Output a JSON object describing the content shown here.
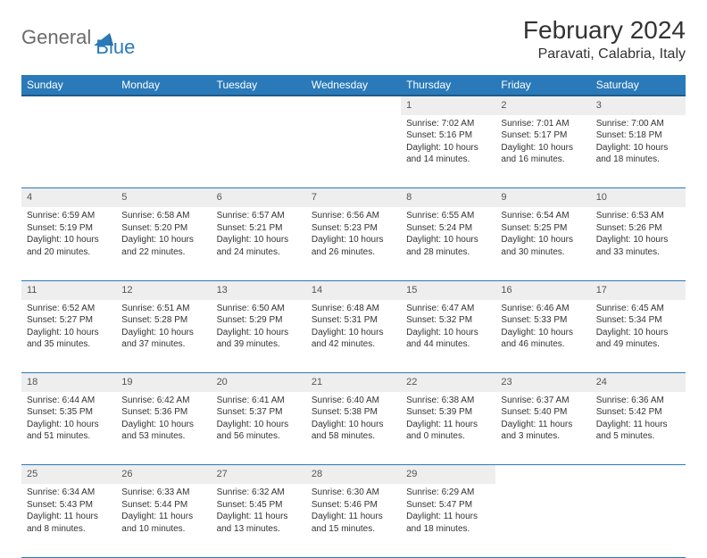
{
  "logo": {
    "word1": "General",
    "word2": "Blue"
  },
  "brand_colors": {
    "logo_gray": "#6b6b6b",
    "logo_blue": "#2a7ab9",
    "header_bg": "#2a7ab9",
    "header_border": "#1e5a8a",
    "row_border": "#2a7ab9",
    "daynum_bg": "#eeeeee",
    "text": "#333333"
  },
  "typography": {
    "title_fontsize": 28,
    "location_fontsize": 16,
    "header_fontsize": 12,
    "body_fontsize": 10
  },
  "title": "February 2024",
  "location": "Paravati, Calabria, Italy",
  "day_headers": [
    "Sunday",
    "Monday",
    "Tuesday",
    "Wednesday",
    "Thursday",
    "Friday",
    "Saturday"
  ],
  "weeks": [
    [
      null,
      null,
      null,
      null,
      {
        "n": "1",
        "sunrise": "Sunrise: 7:02 AM",
        "sunset": "Sunset: 5:16 PM",
        "daylight": "Daylight: 10 hours and 14 minutes."
      },
      {
        "n": "2",
        "sunrise": "Sunrise: 7:01 AM",
        "sunset": "Sunset: 5:17 PM",
        "daylight": "Daylight: 10 hours and 16 minutes."
      },
      {
        "n": "3",
        "sunrise": "Sunrise: 7:00 AM",
        "sunset": "Sunset: 5:18 PM",
        "daylight": "Daylight: 10 hours and 18 minutes."
      }
    ],
    [
      {
        "n": "4",
        "sunrise": "Sunrise: 6:59 AM",
        "sunset": "Sunset: 5:19 PM",
        "daylight": "Daylight: 10 hours and 20 minutes."
      },
      {
        "n": "5",
        "sunrise": "Sunrise: 6:58 AM",
        "sunset": "Sunset: 5:20 PM",
        "daylight": "Daylight: 10 hours and 22 minutes."
      },
      {
        "n": "6",
        "sunrise": "Sunrise: 6:57 AM",
        "sunset": "Sunset: 5:21 PM",
        "daylight": "Daylight: 10 hours and 24 minutes."
      },
      {
        "n": "7",
        "sunrise": "Sunrise: 6:56 AM",
        "sunset": "Sunset: 5:23 PM",
        "daylight": "Daylight: 10 hours and 26 minutes."
      },
      {
        "n": "8",
        "sunrise": "Sunrise: 6:55 AM",
        "sunset": "Sunset: 5:24 PM",
        "daylight": "Daylight: 10 hours and 28 minutes."
      },
      {
        "n": "9",
        "sunrise": "Sunrise: 6:54 AM",
        "sunset": "Sunset: 5:25 PM",
        "daylight": "Daylight: 10 hours and 30 minutes."
      },
      {
        "n": "10",
        "sunrise": "Sunrise: 6:53 AM",
        "sunset": "Sunset: 5:26 PM",
        "daylight": "Daylight: 10 hours and 33 minutes."
      }
    ],
    [
      {
        "n": "11",
        "sunrise": "Sunrise: 6:52 AM",
        "sunset": "Sunset: 5:27 PM",
        "daylight": "Daylight: 10 hours and 35 minutes."
      },
      {
        "n": "12",
        "sunrise": "Sunrise: 6:51 AM",
        "sunset": "Sunset: 5:28 PM",
        "daylight": "Daylight: 10 hours and 37 minutes."
      },
      {
        "n": "13",
        "sunrise": "Sunrise: 6:50 AM",
        "sunset": "Sunset: 5:29 PM",
        "daylight": "Daylight: 10 hours and 39 minutes."
      },
      {
        "n": "14",
        "sunrise": "Sunrise: 6:48 AM",
        "sunset": "Sunset: 5:31 PM",
        "daylight": "Daylight: 10 hours and 42 minutes."
      },
      {
        "n": "15",
        "sunrise": "Sunrise: 6:47 AM",
        "sunset": "Sunset: 5:32 PM",
        "daylight": "Daylight: 10 hours and 44 minutes."
      },
      {
        "n": "16",
        "sunrise": "Sunrise: 6:46 AM",
        "sunset": "Sunset: 5:33 PM",
        "daylight": "Daylight: 10 hours and 46 minutes."
      },
      {
        "n": "17",
        "sunrise": "Sunrise: 6:45 AM",
        "sunset": "Sunset: 5:34 PM",
        "daylight": "Daylight: 10 hours and 49 minutes."
      }
    ],
    [
      {
        "n": "18",
        "sunrise": "Sunrise: 6:44 AM",
        "sunset": "Sunset: 5:35 PM",
        "daylight": "Daylight: 10 hours and 51 minutes."
      },
      {
        "n": "19",
        "sunrise": "Sunrise: 6:42 AM",
        "sunset": "Sunset: 5:36 PM",
        "daylight": "Daylight: 10 hours and 53 minutes."
      },
      {
        "n": "20",
        "sunrise": "Sunrise: 6:41 AM",
        "sunset": "Sunset: 5:37 PM",
        "daylight": "Daylight: 10 hours and 56 minutes."
      },
      {
        "n": "21",
        "sunrise": "Sunrise: 6:40 AM",
        "sunset": "Sunset: 5:38 PM",
        "daylight": "Daylight: 10 hours and 58 minutes."
      },
      {
        "n": "22",
        "sunrise": "Sunrise: 6:38 AM",
        "sunset": "Sunset: 5:39 PM",
        "daylight": "Daylight: 11 hours and 0 minutes."
      },
      {
        "n": "23",
        "sunrise": "Sunrise: 6:37 AM",
        "sunset": "Sunset: 5:40 PM",
        "daylight": "Daylight: 11 hours and 3 minutes."
      },
      {
        "n": "24",
        "sunrise": "Sunrise: 6:36 AM",
        "sunset": "Sunset: 5:42 PM",
        "daylight": "Daylight: 11 hours and 5 minutes."
      }
    ],
    [
      {
        "n": "25",
        "sunrise": "Sunrise: 6:34 AM",
        "sunset": "Sunset: 5:43 PM",
        "daylight": "Daylight: 11 hours and 8 minutes."
      },
      {
        "n": "26",
        "sunrise": "Sunrise: 6:33 AM",
        "sunset": "Sunset: 5:44 PM",
        "daylight": "Daylight: 11 hours and 10 minutes."
      },
      {
        "n": "27",
        "sunrise": "Sunrise: 6:32 AM",
        "sunset": "Sunset: 5:45 PM",
        "daylight": "Daylight: 11 hours and 13 minutes."
      },
      {
        "n": "28",
        "sunrise": "Sunrise: 6:30 AM",
        "sunset": "Sunset: 5:46 PM",
        "daylight": "Daylight: 11 hours and 15 minutes."
      },
      {
        "n": "29",
        "sunrise": "Sunrise: 6:29 AM",
        "sunset": "Sunset: 5:47 PM",
        "daylight": "Daylight: 11 hours and 18 minutes."
      },
      null,
      null
    ]
  ]
}
